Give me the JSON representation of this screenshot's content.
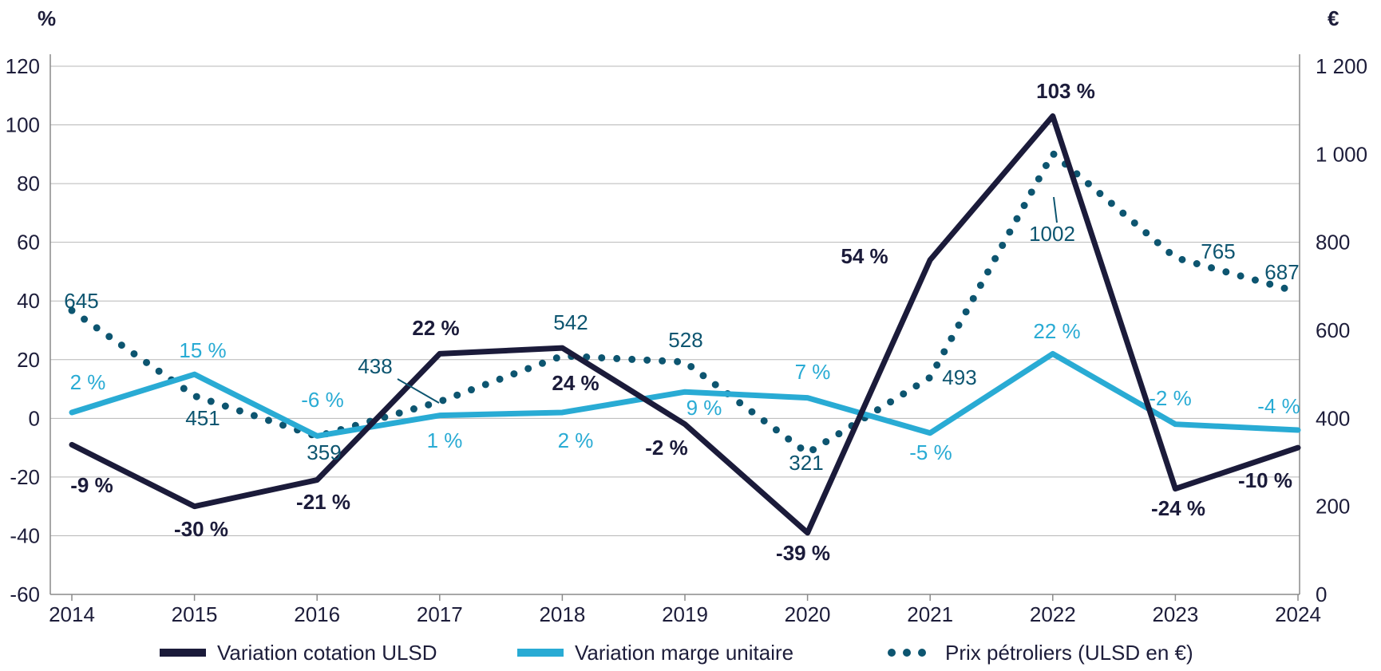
{
  "chart_data": {
    "type": "line",
    "x": [
      "2014",
      "2015",
      "2016",
      "2017",
      "2018",
      "2019",
      "2020",
      "2021",
      "2022",
      "2023",
      "2024"
    ],
    "y_left": {
      "unit": "%",
      "ylim": [
        -60,
        120
      ],
      "ticks": [
        "-60",
        "-40",
        "-20",
        "0",
        "20",
        "40",
        "60",
        "80",
        "100",
        "120"
      ]
    },
    "y_right": {
      "unit": "€",
      "ylim": [
        0,
        1200
      ],
      "ticks": [
        "0",
        "200",
        "400",
        "600",
        "800",
        "1 000",
        "1 200"
      ]
    },
    "grid": "horizontal",
    "legend_position": "bottom",
    "series": [
      {
        "name": "Variation cotation ULSD",
        "axis": "left",
        "color": "#1b1b3a",
        "style": "solid",
        "values": [
          -9,
          -30,
          -21,
          22,
          24,
          -2,
          -39,
          54,
          103,
          -24,
          -10
        ],
        "labels": [
          "-9 %",
          "-30 %",
          "-21 %",
          "22 %",
          "24 %",
          "-2 %",
          "-39 %",
          "54 %",
          "103 %",
          "-24 %",
          "-10 %"
        ]
      },
      {
        "name": "Variation marge unitaire",
        "axis": "left",
        "color": "#29abd4",
        "style": "solid",
        "values": [
          2,
          15,
          -6,
          1,
          2,
          9,
          7,
          -5,
          22,
          -2,
          -4
        ],
        "labels": [
          "2 %",
          "15 %",
          "-6 %",
          "1 %",
          "2 %",
          "9 %",
          "7 %",
          "-5 %",
          "22 %",
          "-2 %",
          "-4 %"
        ]
      },
      {
        "name": "Prix pétroliers (ULSD en €)",
        "axis": "right",
        "color": "#0d5570",
        "style": "dotted",
        "values": [
          645,
          451,
          359,
          438,
          542,
          528,
          321,
          493,
          1002,
          765,
          687
        ],
        "labels": [
          "645",
          "451",
          "359",
          "438",
          "542",
          "528",
          "321",
          "493",
          "1002",
          "765",
          "687"
        ]
      }
    ]
  }
}
